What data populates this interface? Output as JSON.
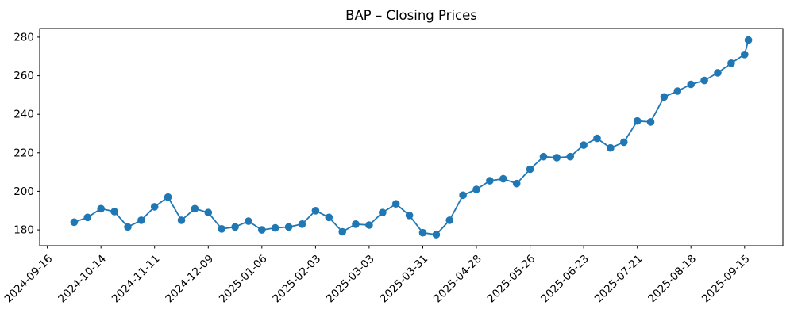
{
  "chart_data": {
    "type": "line",
    "title": "BAP – Closing Prices",
    "xlabel": "",
    "ylabel": "",
    "grid": false,
    "legend": "none",
    "line_color": "#1f77b4",
    "axis_color": "#000000",
    "background_color": "#ffffff",
    "ylim": [
      171.8,
      284.5
    ],
    "xlim": [
      "2024-09-12",
      "2025-10-05"
    ],
    "yticks": [
      180,
      200,
      220,
      240,
      260,
      280
    ],
    "xticks": [
      "2024-09-16",
      "2024-10-14",
      "2024-11-11",
      "2024-12-09",
      "2025-01-06",
      "2025-02-03",
      "2025-03-03",
      "2025-03-31",
      "2025-04-28",
      "2025-05-26",
      "2025-06-23",
      "2025-07-21",
      "2025-08-18",
      "2025-09-15"
    ],
    "series": [
      {
        "name": "BAP",
        "color": "#1f77b4",
        "marker": "circle",
        "dates": [
          "2024-09-30",
          "2024-10-07",
          "2024-10-14",
          "2024-10-21",
          "2024-10-28",
          "2024-11-04",
          "2024-11-11",
          "2024-11-18",
          "2024-11-25",
          "2024-12-02",
          "2024-12-09",
          "2024-12-16",
          "2024-12-23",
          "2024-12-30",
          "2025-01-06",
          "2025-01-13",
          "2025-01-20",
          "2025-01-27",
          "2025-02-03",
          "2025-02-10",
          "2025-02-17",
          "2025-02-24",
          "2025-03-03",
          "2025-03-10",
          "2025-03-17",
          "2025-03-24",
          "2025-03-31",
          "2025-04-07",
          "2025-04-14",
          "2025-04-21",
          "2025-04-28",
          "2025-05-05",
          "2025-05-12",
          "2025-05-19",
          "2025-05-26",
          "2025-06-02",
          "2025-06-09",
          "2025-06-16",
          "2025-06-23",
          "2025-06-30",
          "2025-07-07",
          "2025-07-14",
          "2025-07-21",
          "2025-07-28",
          "2025-08-04",
          "2025-08-11",
          "2025-08-18",
          "2025-08-25",
          "2025-09-01",
          "2025-09-08",
          "2025-09-15",
          "2025-09-17"
        ],
        "values": [
          184,
          186.5,
          191,
          189.5,
          181.5,
          185,
          192,
          197,
          185,
          191,
          189,
          180.5,
          181.5,
          184.5,
          180,
          181,
          181.5,
          183,
          190,
          186.5,
          179,
          183,
          182.5,
          189,
          193.5,
          187.5,
          178.5,
          177.5,
          185,
          198,
          201,
          205.5,
          206.5,
          204,
          211.5,
          218,
          217.5,
          218,
          224,
          227.5,
          222.5,
          225.5,
          236.5,
          236,
          249,
          252,
          255.5,
          257.5,
          261.5,
          266.5,
          271,
          278.5
        ]
      }
    ]
  }
}
